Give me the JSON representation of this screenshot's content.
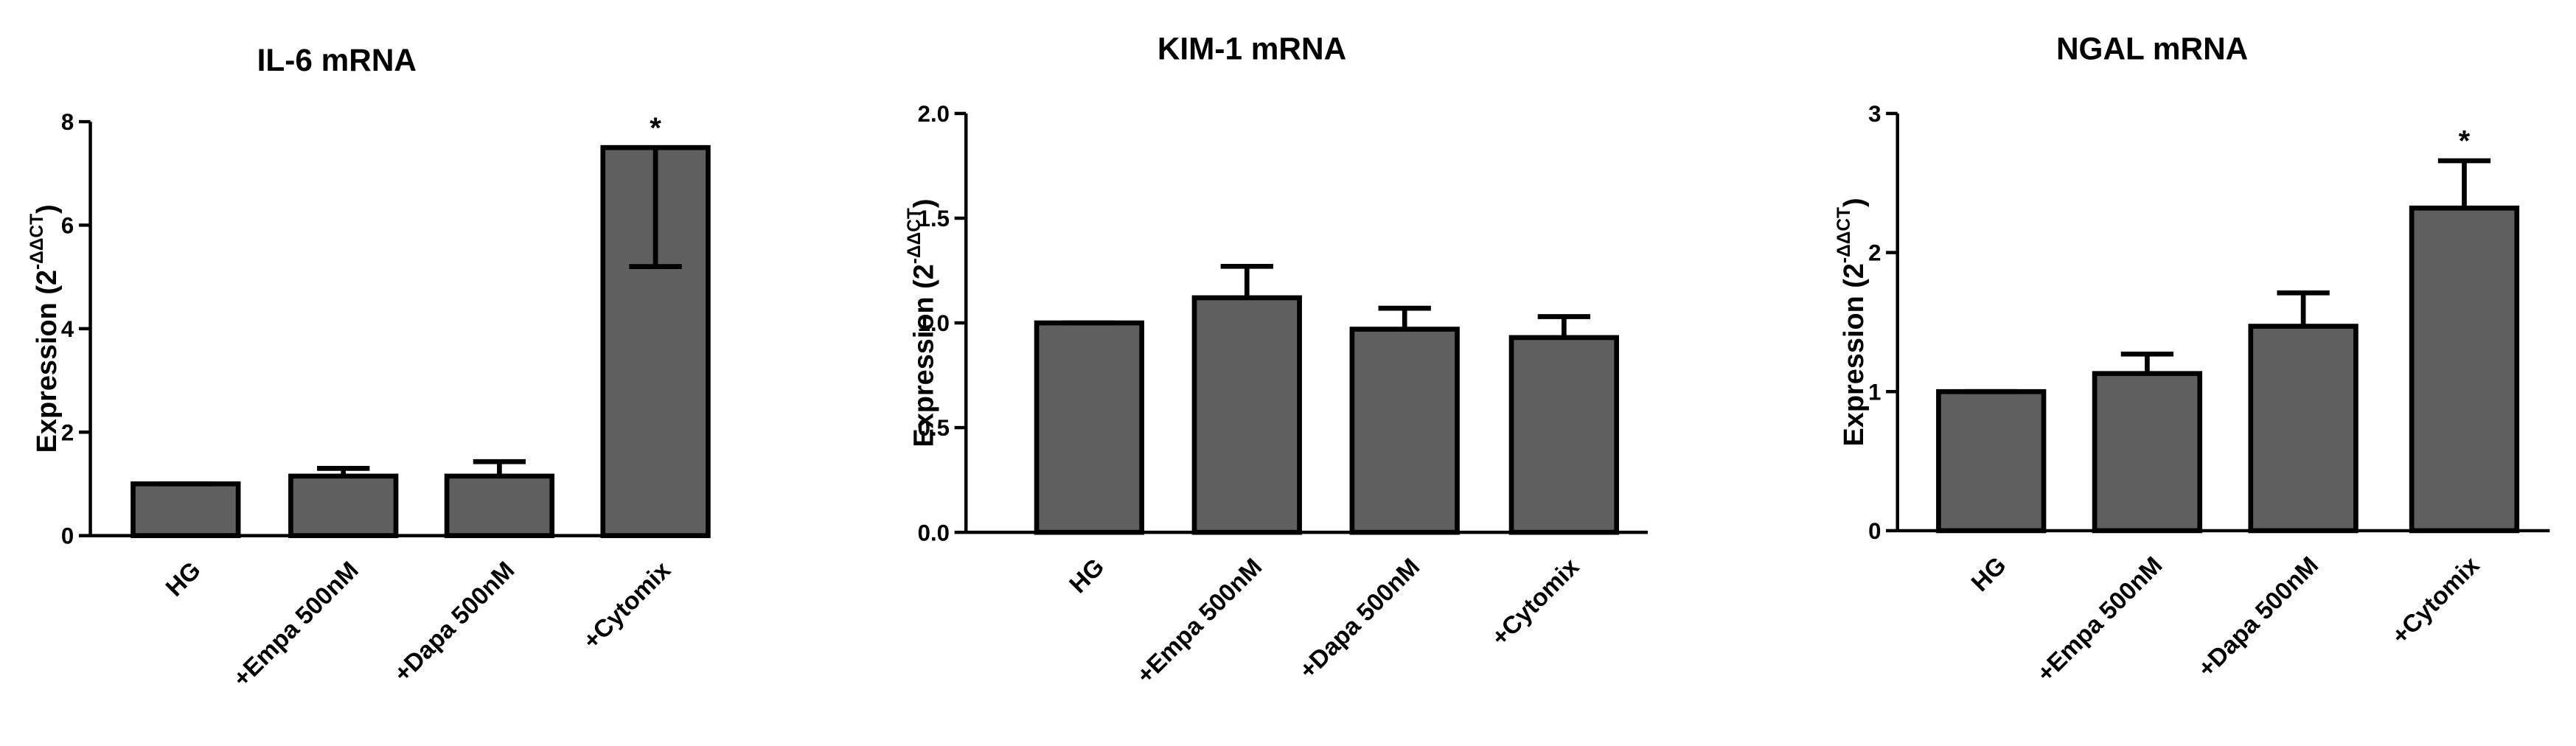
{
  "chart_data": [
    {
      "type": "bar",
      "title": "IL-6 mRNA",
      "ylabel": "Expression (2",
      "ylabel_sup": "-ΔΔCT",
      "ylabel_end": ")",
      "categories": [
        "HG",
        "+Empa 500nM",
        "+Dapa 500nM",
        "+Cytomix"
      ],
      "values": [
        1.0,
        1.15,
        1.15,
        7.5
      ],
      "errors": [
        0,
        0.15,
        0.28,
        2.3
      ],
      "error_side": [
        "up",
        "up",
        "up",
        "down"
      ],
      "color": "#5f5f5f",
      "ylim": [
        0,
        8
      ],
      "yticks": [
        0,
        2,
        4,
        6,
        8
      ],
      "annotations": [
        {
          "index": 3,
          "text": "*"
        }
      ]
    },
    {
      "type": "bar",
      "title": "KIM-1 mRNA",
      "ylabel": "Expression (2",
      "ylabel_sup": "-ΔΔCT",
      "ylabel_end": ")",
      "categories": [
        "HG",
        "+Empa 500nM",
        "+Dapa 500nM",
        "+Cytomix"
      ],
      "values": [
        1.0,
        1.12,
        0.97,
        0.93
      ],
      "errors": [
        0,
        0.15,
        0.1,
        0.1
      ],
      "error_side": [
        "up",
        "up",
        "up",
        "up"
      ],
      "color": "#5f5f5f",
      "ylim": [
        0,
        2
      ],
      "yticks": [
        {
          "value": 0,
          "label": "0.0"
        },
        0.5,
        {
          "value": 1,
          "label": "1.0"
        },
        1.5,
        {
          "value": 2,
          "label": "2.0"
        }
      ],
      "annotations": []
    },
    {
      "type": "bar",
      "title": "NGAL mRNA",
      "ylabel": "Expression (2",
      "ylabel_sup": "-ΔΔCT",
      "ylabel_end": ")",
      "categories": [
        "HG",
        "+Empa 500nM",
        "+Dapa 500nM",
        "+Cytomix"
      ],
      "values": [
        1.0,
        1.13,
        1.47,
        2.32
      ],
      "errors": [
        0,
        0.14,
        0.24,
        0.34
      ],
      "error_side": [
        "up",
        "up",
        "up",
        "up"
      ],
      "color": "#5f5f5f",
      "ylim": [
        0,
        3
      ],
      "yticks": [
        0,
        1,
        2,
        3
      ],
      "annotations": [
        {
          "index": 3,
          "text": "*"
        }
      ]
    }
  ]
}
